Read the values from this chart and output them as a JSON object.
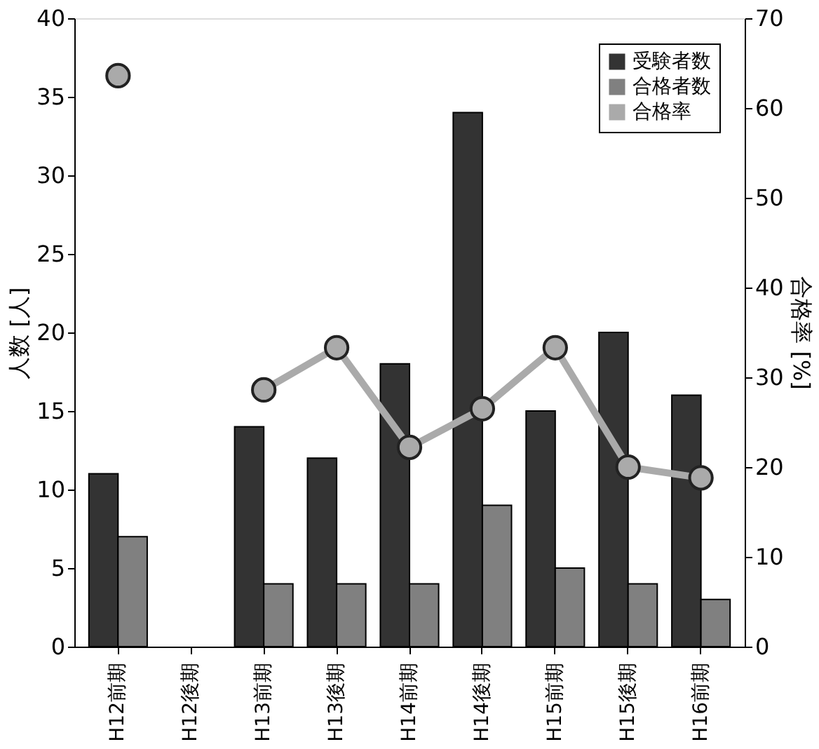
{
  "chart_data": {
    "type": "bar",
    "categories": [
      "H12前期",
      "H12後期",
      "H13前期",
      "H13後期",
      "H14前期",
      "H14後期",
      "H15前期",
      "H15後期",
      "H16前期"
    ],
    "ylabel": "人数 [人]",
    "y2label": "合格率 [%]",
    "ylim": [
      0,
      40
    ],
    "yticks": [
      0,
      5,
      10,
      15,
      20,
      25,
      30,
      35,
      40
    ],
    "y2lim": [
      0,
      70
    ],
    "y2ticks": [
      0,
      10,
      20,
      30,
      40,
      50,
      60,
      70
    ],
    "grid": false,
    "legend": "top right",
    "marker": "circle",
    "line_style": "solid",
    "series": [
      {
        "name": "受験者数",
        "color": "#333333",
        "values": [
          11,
          null,
          14,
          12,
          18,
          34,
          15,
          20,
          16
        ]
      },
      {
        "name": "合格者数",
        "color": "#808080",
        "values": [
          7,
          null,
          4,
          4,
          4,
          9,
          5,
          4,
          3
        ]
      },
      {
        "name": "合格率",
        "type": "line",
        "axis": "y2",
        "color": "#aaaaaa",
        "values": [
          63.6,
          null,
          28.6,
          33.3,
          22.2,
          26.5,
          33.3,
          20,
          18.8
        ]
      }
    ]
  }
}
